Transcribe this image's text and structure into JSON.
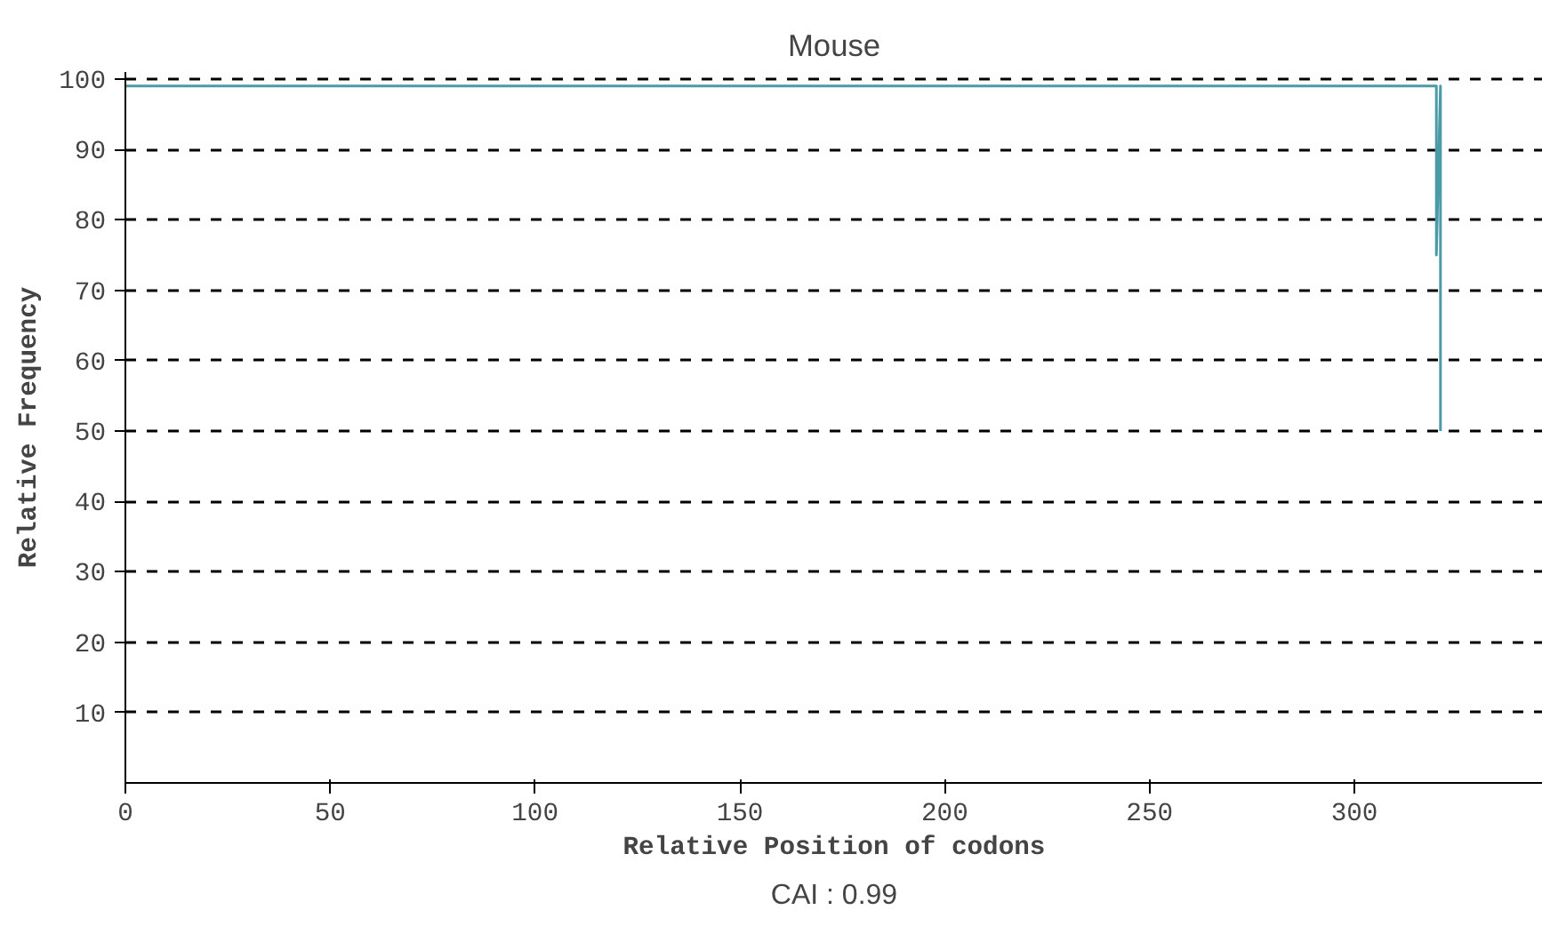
{
  "chart_data": {
    "type": "line",
    "title": "Mouse",
    "xlabel": "Relative Position of codons",
    "ylabel": "Relative Frequency",
    "x": [
      0,
      320,
      320,
      321,
      321
    ],
    "series": [
      {
        "color": "#4a9aa8",
        "values": [
          99,
          99,
          75,
          99,
          50
        ]
      }
    ],
    "xlim": [
      0,
      346
    ],
    "ylim": [
      0,
      101
    ],
    "xticks": [
      0,
      50,
      100,
      150,
      200,
      250,
      300
    ],
    "yticks": [
      10,
      20,
      30,
      40,
      50,
      60,
      70,
      80,
      90,
      100
    ],
    "grid": "y",
    "line_style": "solid",
    "marker": "none",
    "annotations": [
      "CAI : 0.99"
    ]
  }
}
